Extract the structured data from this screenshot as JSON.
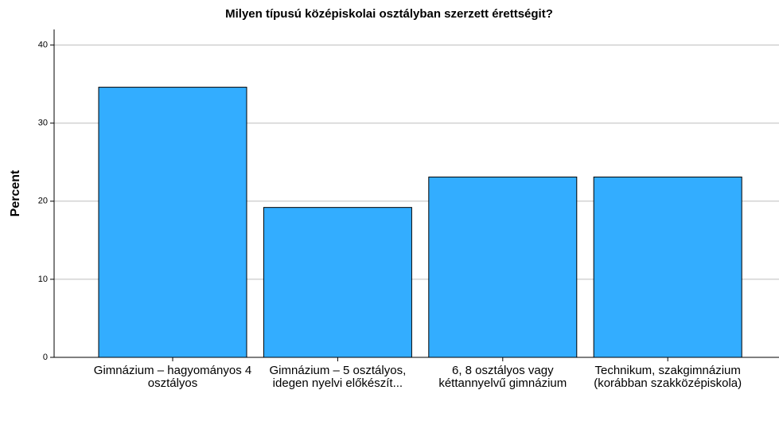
{
  "chart_data": {
    "type": "bar",
    "title": "Milyen típusú középiskolai osztályban szerzett érettségit?",
    "y_label": "Percent",
    "categories": [
      "Gimnázium – hagyományos 4 osztályos",
      "Gimnázium – 5 osztályos, idegen nyelvi előkészít...",
      "6, 8 osztályos vagy kéttannyelvű gimnázium",
      "Technikum, szakgimnázium (korábban szakközépiskola)"
    ],
    "values": [
      34.6,
      19.2,
      23.1,
      23.1
    ],
    "color": "#33adff",
    "ylim": [
      0,
      42
    ],
    "yticks": [
      0,
      10,
      20,
      30,
      40
    ],
    "grid": true
  }
}
